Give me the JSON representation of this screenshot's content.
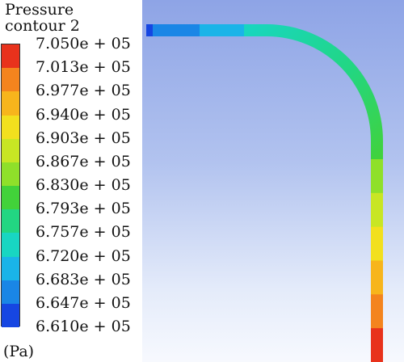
{
  "legend": {
    "title_line1": "Pressure",
    "title_line2": "contour 2",
    "unit": "(Pa)",
    "levels": [
      "7.050e + 05",
      "7.013e + 05",
      "6.977e + 05",
      "6.940e + 05",
      "6.903e + 05",
      "6.867e + 05",
      "6.830e + 05",
      "6.793e + 05",
      "6.757e + 05",
      "6.720e + 05",
      "6.683e + 05",
      "6.647e + 05",
      "6.610e + 05"
    ],
    "colors": [
      "#e8321c",
      "#f4841e",
      "#f7b51c",
      "#f2e01e",
      "#c8e624",
      "#8fe02a",
      "#42d23a",
      "#22d682",
      "#18d6c2",
      "#1ab4e8",
      "#1a86e6",
      "#1646e2",
      "#0c14d8"
    ]
  },
  "pipe_colors": {
    "inlet_dark": "#1646e2",
    "inlet": "#1a86e6",
    "horizontal": "#1ab4e8",
    "bend_start": "#18d6c2",
    "bend_mid": "#22d682",
    "bend_end": "#42d23a",
    "outlet": [
      "#8fe02a",
      "#c8e624",
      "#f2e01e",
      "#f7b51c",
      "#f4841e",
      "#e8321c"
    ]
  }
}
